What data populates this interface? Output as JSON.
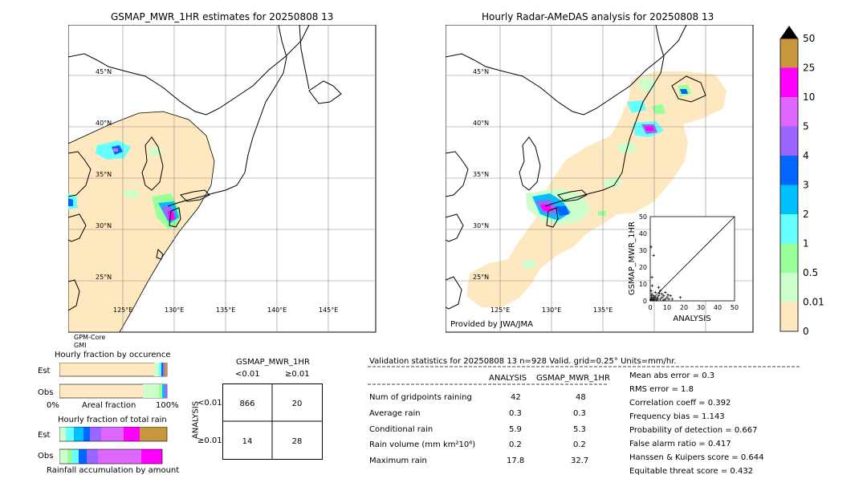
{
  "left_map": {
    "title": "GSMAP_MWR_1HR estimates for 20250808 13",
    "lat_labels": [
      "45°N",
      "40°N",
      "35°N",
      "30°N",
      "25°N"
    ],
    "lon_labels": [
      "125°E",
      "130°E",
      "135°E",
      "140°E",
      "145°E"
    ],
    "footer_line1": "GPM-Core",
    "footer_line2": "GMI"
  },
  "right_map": {
    "title": "Hourly Radar-AMeDAS analysis for 20250808 13",
    "lat_labels": [
      "45°N",
      "40°N",
      "35°N",
      "30°N",
      "25°N"
    ],
    "lon_labels": [
      "125°E",
      "130°E",
      "135°E"
    ],
    "credit": "Provided by JWA/JMA"
  },
  "colorbar": {
    "labels": [
      "50",
      "25",
      "10",
      "5",
      "4",
      "3",
      "2",
      "1",
      "0.5",
      "0.01",
      "0"
    ],
    "colors": [
      "#c8963c",
      "#ff00ff",
      "#dd66ff",
      "#9966ff",
      "#0066ff",
      "#00bfff",
      "#66ffff",
      "#99ff99",
      "#ccffcc",
      "#ffe8bf"
    ]
  },
  "occurrence": {
    "title": "Hourly fraction by occurence",
    "rows": [
      "Est",
      "Obs"
    ],
    "axis_left": "0%",
    "axis_mid": "Areal fraction",
    "axis_right": "100%"
  },
  "total_rain": {
    "title": "Hourly fraction of total rain",
    "rows": [
      "Est",
      "Obs"
    ],
    "footer": "Rainfall accumulation by amount"
  },
  "contingency": {
    "title": "GSMAP_MWR_1HR",
    "col_labels": [
      "<0.01",
      "≥0.01"
    ],
    "row_axis": "ANALYSIS",
    "row_labels": [
      "<0.01",
      "≥0.01"
    ],
    "cells": [
      [
        "866",
        "20"
      ],
      [
        "14",
        "28"
      ]
    ]
  },
  "validation": {
    "header": "Validation statistics for 20250808 13  n=928 Valid. grid=0.25° Units=mm/hr.",
    "col_analysis": "ANALYSIS",
    "col_gsmap": "GSMAP_MWR_1HR",
    "rows": [
      {
        "label": "Num of gridpoints raining",
        "analysis": "42",
        "gsmap": "48"
      },
      {
        "label": "Average rain",
        "analysis": "0.3",
        "gsmap": "0.3"
      },
      {
        "label": "Conditional rain",
        "analysis": "5.9",
        "gsmap": "5.3"
      },
      {
        "label": "Rain volume (mm km²10⁶)",
        "analysis": "0.2",
        "gsmap": "0.2"
      },
      {
        "label": "Maximum rain",
        "analysis": "17.8",
        "gsmap": "32.7"
      }
    ],
    "scores": [
      "Mean abs error =    0.3",
      "RMS error =    1.8",
      "Correlation coeff =  0.392",
      "Frequency bias =  1.143",
      "Probability of detection =  0.667",
      "False alarm ratio =  0.417",
      "Hanssen & Kuipers score =  0.644",
      "Equitable threat score =  0.432"
    ]
  },
  "chart_data": {
    "type": "scatter",
    "xlabel": "ANALYSIS",
    "ylabel": "GSMAP_MWR_1HR",
    "xlim": [
      0,
      50
    ],
    "ylim": [
      0,
      50
    ],
    "ticks": [
      "0",
      "10",
      "20",
      "30",
      "40",
      "50"
    ],
    "points": [
      [
        0.5,
        32
      ],
      [
        2,
        27
      ],
      [
        1,
        14
      ],
      [
        0.5,
        6
      ],
      [
        1,
        4
      ],
      [
        2,
        3
      ],
      [
        3,
        5
      ],
      [
        4,
        2
      ],
      [
        5,
        8
      ],
      [
        6,
        6
      ],
      [
        7,
        4
      ],
      [
        8,
        3
      ],
      [
        9,
        5
      ],
      [
        10,
        2
      ],
      [
        11,
        1
      ],
      [
        12,
        3
      ],
      [
        13,
        1
      ],
      [
        17.8,
        2
      ],
      [
        0.5,
        1
      ],
      [
        1,
        2
      ],
      [
        1.5,
        0.5
      ],
      [
        2.5,
        1
      ],
      [
        3,
        2
      ],
      [
        3.5,
        0.5
      ],
      [
        4.5,
        1
      ],
      [
        5,
        3
      ],
      [
        6,
        1
      ],
      [
        7,
        2
      ],
      [
        8,
        0.5
      ],
      [
        9,
        1
      ],
      [
        0.3,
        0.5
      ],
      [
        0.8,
        3
      ],
      [
        1.2,
        9
      ],
      [
        2,
        1
      ],
      [
        5.5,
        4.5
      ],
      [
        10.5,
        3.5
      ]
    ]
  }
}
